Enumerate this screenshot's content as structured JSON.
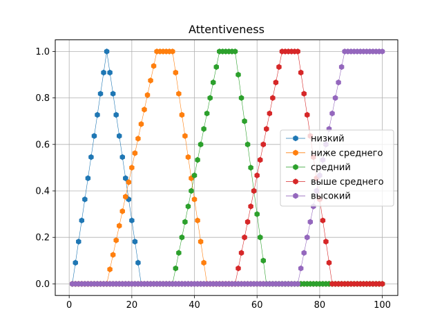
{
  "chart_data": {
    "type": "line",
    "title": "Attentiveness",
    "xlabel": "",
    "ylabel": "",
    "xlim": [
      -4.45,
      104.95
    ],
    "ylim": [
      -0.05,
      1.05
    ],
    "xticks": [
      0,
      20,
      40,
      60,
      80,
      100
    ],
    "yticks": [
      0.0,
      0.2,
      0.4,
      0.6,
      0.8,
      1.0
    ],
    "xtick_labels": [
      "0",
      "20",
      "40",
      "60",
      "80",
      "100"
    ],
    "ytick_labels": [
      "0.0",
      "0.2",
      "0.4",
      "0.6",
      "0.8",
      "1.0"
    ],
    "grid": true,
    "legend_position": "center-right",
    "marker": "hexagon",
    "series": [
      {
        "name": "низкий",
        "color": "#1f77b4",
        "shape": [
          1,
          12,
          12,
          23
        ]
      },
      {
        "name": "ниже среднего",
        "color": "#ff7f0e",
        "shape": [
          12,
          28,
          33,
          44
        ]
      },
      {
        "name": "средний",
        "color": "#2ca02c",
        "shape": [
          33,
          48,
          53,
          63
        ]
      },
      {
        "name": "выше среднего",
        "color": "#d62728",
        "shape": [
          53,
          68,
          73,
          84
        ]
      },
      {
        "name": "высокий",
        "color": "#9467bd",
        "shape": [
          73,
          88,
          100,
          100
        ]
      }
    ]
  }
}
